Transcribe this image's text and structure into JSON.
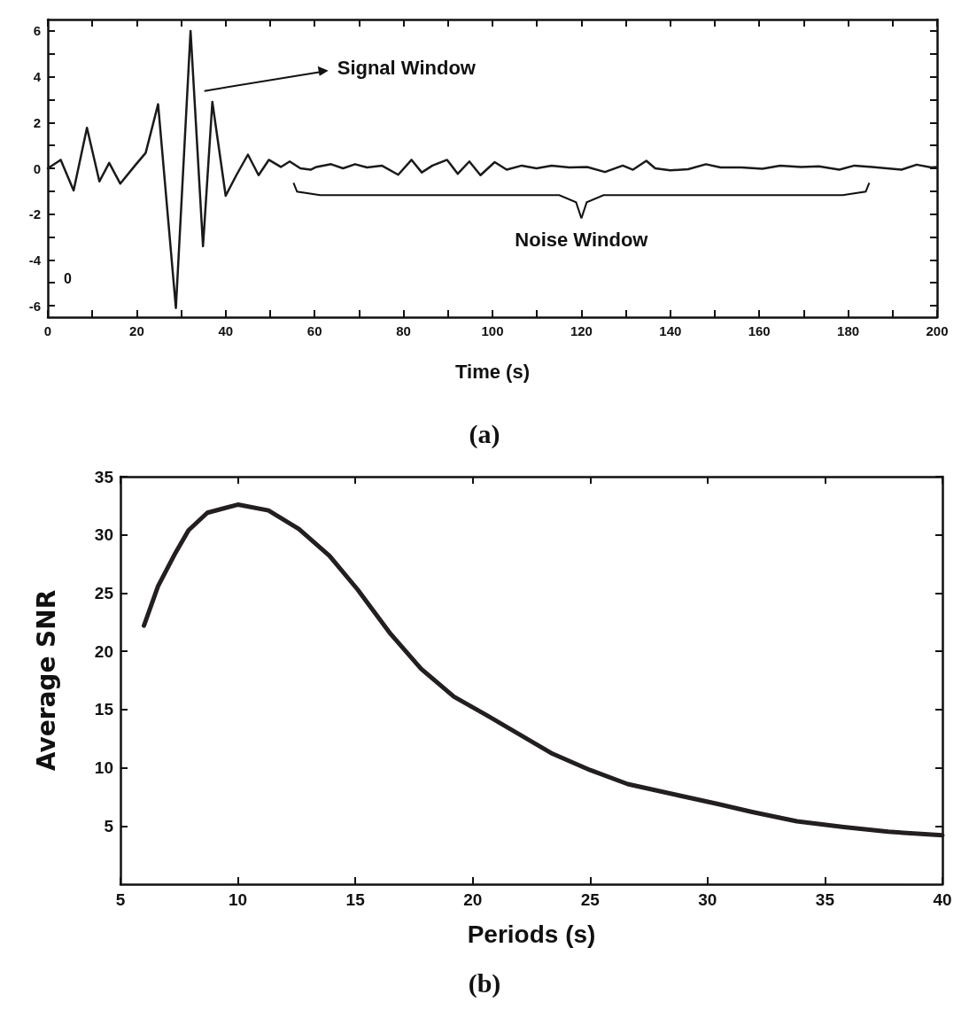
{
  "chart_data": [
    {
      "type": "line",
      "xlabel": "Time (s)",
      "xlim": [
        0,
        200
      ],
      "ylim": [
        -6.5,
        6.5
      ],
      "xticks": [
        0,
        {
          "value": 10,
          "label": null
        },
        20,
        {
          "value": 30,
          "label": null
        },
        40,
        {
          "value": 50,
          "label": null
        },
        60,
        {
          "value": 70,
          "label": null
        },
        80,
        {
          "value": 90,
          "label": null
        },
        100,
        {
          "value": 110,
          "label": null
        },
        120,
        {
          "value": 130,
          "label": null
        },
        140,
        {
          "value": 150,
          "label": null
        },
        160,
        {
          "value": 170,
          "label": null
        },
        180,
        {
          "value": 190,
          "label": null
        },
        200
      ],
      "yticks": [
        -6,
        {
          "value": -5,
          "label": null
        },
        -4,
        {
          "value": -3,
          "label": null
        },
        -2,
        {
          "value": -1,
          "label": null
        },
        0,
        {
          "value": 1,
          "label": null
        },
        2,
        {
          "value": 3,
          "label": null
        },
        4,
        {
          "value": 5,
          "label": null
        },
        6
      ],
      "grid": false,
      "series": [
        {
          "color": "#1a1a1a",
          "x": [
            0,
            2.9,
            5.8,
            8.8,
            11.6,
            13.8,
            16.3,
            19.6,
            22,
            24.8,
            28.8,
            32.1,
            34.9,
            37,
            40,
            42.4,
            45,
            47.4,
            49.7,
            52.4,
            54.4,
            56.8,
            59.1,
            60.4,
            63.7,
            66.4,
            69.1,
            71.8,
            75.1,
            78.8,
            81.8,
            84.1,
            86.5,
            89.8,
            92.2,
            94.8,
            97.3,
            100.5,
            103.2,
            106.6,
            109.9,
            113.3,
            117.3,
            121.3,
            125.3,
            129.3,
            131.6,
            134.6,
            136.6,
            140,
            144,
            148,
            151.3,
            156,
            160.7,
            164.7,
            169.4,
            173.4,
            178,
            181.4,
            185.4,
            192,
            195.4,
            198.7,
            200
          ],
          "values": [
            0,
            0.37,
            -0.97,
            1.77,
            -0.57,
            0.24,
            -0.67,
            0.12,
            0.67,
            2.8,
            -6.1,
            6,
            -3.4,
            2.9,
            -1.2,
            -0.3,
            0.6,
            -0.3,
            0.37,
            0.06,
            0.3,
            0,
            -0.06,
            0.06,
            0.18,
            0,
            0.18,
            0.04,
            0.12,
            -0.28,
            0.37,
            -0.18,
            0.12,
            0.37,
            -0.24,
            0.3,
            -0.3,
            0.27,
            -0.06,
            0.12,
            0,
            0.12,
            0.04,
            0.06,
            -0.16,
            0.12,
            -0.06,
            0.33,
            0,
            -0.09,
            -0.04,
            0.18,
            0.04,
            0.04,
            -0.02,
            0.12,
            0.06,
            0.09,
            -0.06,
            0.12,
            0.06,
            -0.06,
            0.16,
            0.04,
            0.06
          ]
        }
      ],
      "annotations": [
        "Signal Window",
        "Noise Window",
        "0",
        "(a)"
      ]
    },
    {
      "type": "line",
      "xlabel": "Periods (s)",
      "ylabel": "Average SNR",
      "xlim": [
        5,
        40
      ],
      "ylim": [
        0,
        35
      ],
      "xticks": [
        5,
        10,
        15,
        20,
        25,
        30,
        35,
        40
      ],
      "yticks": [
        5,
        10,
        15,
        20,
        25,
        30,
        35
      ],
      "grid": false,
      "series": [
        {
          "color": "#231f20",
          "x": [
            6,
            6.6,
            7.3,
            7.9,
            8.7,
            10,
            11.3,
            12.6,
            13.9,
            15.1,
            16.5,
            17.8,
            19.2,
            20.6,
            23.4,
            25,
            26.6,
            28.6,
            30.4,
            31.9,
            33.8,
            35.8,
            37.7,
            40
          ],
          "values": [
            22.2,
            25.6,
            28.3,
            30.4,
            31.9,
            32.6,
            32.1,
            30.5,
            28.2,
            25.3,
            21.5,
            18.5,
            16.1,
            14.5,
            11.2,
            9.8,
            8.6,
            7.7,
            6.9,
            6.2,
            5.4,
            4.9,
            4.5,
            4.2
          ]
        }
      ],
      "annotations": [
        "(b)"
      ]
    }
  ]
}
